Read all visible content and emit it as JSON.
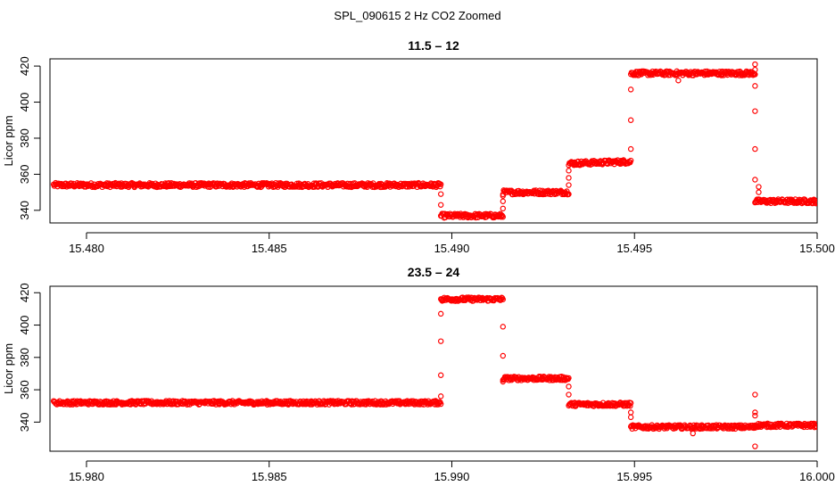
{
  "figure_title": "SPL_090615  2 Hz CO2 Zoomed",
  "colors": {
    "points": "#ff0000",
    "axes": "#000000",
    "background": "#ffffff"
  },
  "chart_data": [
    {
      "type": "scatter",
      "title": "11.5 – 12",
      "xlabel": "",
      "ylabel": "Licor ppm",
      "xlim": [
        15.479,
        15.5
      ],
      "ylim": [
        333,
        424
      ],
      "xticks": [
        15.48,
        15.485,
        15.49,
        15.495,
        15.5
      ],
      "xtick_labels": [
        "15.480",
        "15.485",
        "15.490",
        "15.495",
        "15.500"
      ],
      "yticks": [
        340,
        360,
        380,
        400,
        420
      ],
      "ytick_labels": [
        "340",
        "360",
        "380",
        "400",
        "420"
      ],
      "grid": false,
      "marker": "open-circle",
      "series": [
        {
          "segments": [
            {
              "x_start": 15.4791,
              "x_end": 15.4897,
              "y_start": 354,
              "y_end": 354
            },
            {
              "x_start": 15.4897,
              "x_end": 15.4914,
              "y_start": 337,
              "y_end": 337
            },
            {
              "x_start": 15.4914,
              "x_end": 15.4932,
              "y_start": 350,
              "y_end": 350
            },
            {
              "x_start": 15.4932,
              "x_end": 15.4949,
              "y_start": 366,
              "y_end": 367
            },
            {
              "x_start": 15.4949,
              "x_end": 15.4983,
              "y_start": 416,
              "y_end": 416
            },
            {
              "x_start": 15.4983,
              "x_end": 15.5,
              "y_start": 345,
              "y_end": 345
            }
          ],
          "transition_points": [
            {
              "x": 15.4897,
              "y": 349
            },
            {
              "x": 15.4897,
              "y": 343
            },
            {
              "x": 15.4914,
              "y": 341
            },
            {
              "x": 15.4914,
              "y": 345
            },
            {
              "x": 15.4914,
              "y": 348
            },
            {
              "x": 15.4932,
              "y": 354
            },
            {
              "x": 15.4932,
              "y": 358
            },
            {
              "x": 15.4932,
              "y": 362
            },
            {
              "x": 15.4949,
              "y": 374
            },
            {
              "x": 15.4949,
              "y": 390
            },
            {
              "x": 15.4949,
              "y": 407
            },
            {
              "x": 15.4962,
              "y": 412
            },
            {
              "x": 15.4983,
              "y": 421
            },
            {
              "x": 15.4983,
              "y": 418
            },
            {
              "x": 15.4983,
              "y": 409
            },
            {
              "x": 15.4983,
              "y": 395
            },
            {
              "x": 15.4983,
              "y": 374
            },
            {
              "x": 15.4983,
              "y": 357
            },
            {
              "x": 15.4984,
              "y": 353
            },
            {
              "x": 15.4984,
              "y": 350
            }
          ]
        }
      ]
    },
    {
      "type": "scatter",
      "title": "23.5 – 24",
      "xlabel": "",
      "ylabel": "Licor ppm",
      "xlim": [
        15.979,
        16.0
      ],
      "ylim": [
        322,
        424
      ],
      "xticks": [
        15.98,
        15.985,
        15.99,
        15.995,
        16.0
      ],
      "xtick_labels": [
        "15.980",
        "15.985",
        "15.990",
        "15.995",
        "16.000"
      ],
      "yticks": [
        340,
        360,
        380,
        400,
        420
      ],
      "ytick_labels": [
        "340",
        "360",
        "380",
        "400",
        "420"
      ],
      "grid": false,
      "marker": "open-circle",
      "series": [
        {
          "segments": [
            {
              "x_start": 15.9791,
              "x_end": 15.9897,
              "y_start": 352,
              "y_end": 352
            },
            {
              "x_start": 15.9897,
              "x_end": 15.9914,
              "y_start": 416,
              "y_end": 416
            },
            {
              "x_start": 15.9914,
              "x_end": 15.9932,
              "y_start": 367,
              "y_end": 367
            },
            {
              "x_start": 15.9932,
              "x_end": 15.9949,
              "y_start": 351,
              "y_end": 351
            },
            {
              "x_start": 15.9949,
              "x_end": 15.9983,
              "y_start": 337,
              "y_end": 337
            },
            {
              "x_start": 15.9983,
              "x_end": 16.0,
              "y_start": 338,
              "y_end": 338
            }
          ],
          "transition_points": [
            {
              "x": 15.9897,
              "y": 356
            },
            {
              "x": 15.9897,
              "y": 369
            },
            {
              "x": 15.9897,
              "y": 390
            },
            {
              "x": 15.9897,
              "y": 407
            },
            {
              "x": 15.9914,
              "y": 399
            },
            {
              "x": 15.9914,
              "y": 381
            },
            {
              "x": 15.9914,
              "y": 365
            },
            {
              "x": 15.9932,
              "y": 362
            },
            {
              "x": 15.9932,
              "y": 357
            },
            {
              "x": 15.9949,
              "y": 346
            },
            {
              "x": 15.9949,
              "y": 343
            },
            {
              "x": 15.9966,
              "y": 333
            },
            {
              "x": 15.9983,
              "y": 357
            },
            {
              "x": 15.9983,
              "y": 346
            },
            {
              "x": 15.9983,
              "y": 344
            },
            {
              "x": 15.9983,
              "y": 325
            }
          ]
        }
      ]
    }
  ]
}
